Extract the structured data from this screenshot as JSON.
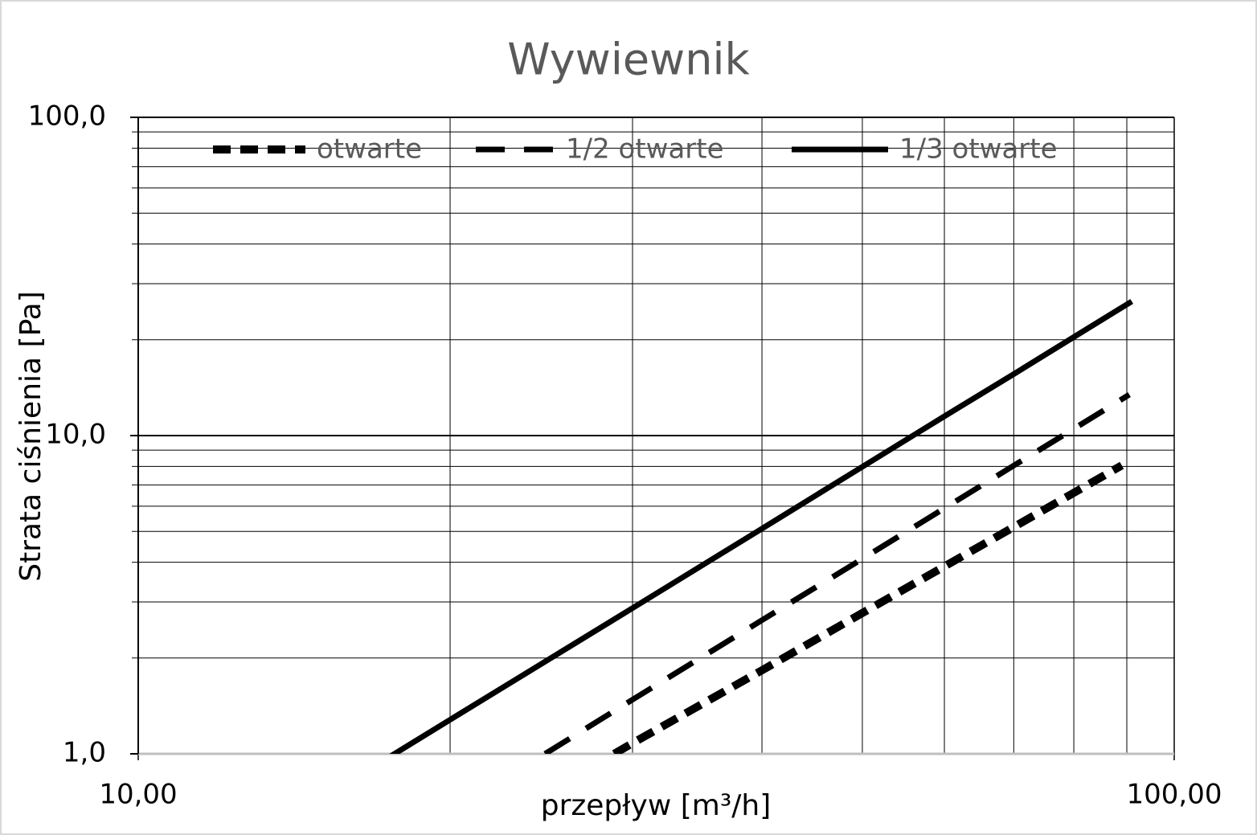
{
  "chart_data": {
    "type": "line",
    "title": "Wywiewnik",
    "x_label": "przepływ [m³/h]",
    "y_label": "Strata ciśnienia [Pa]",
    "log_x": true,
    "log_y": true,
    "grid": true,
    "legend": "top",
    "xlim": [
      10,
      100
    ],
    "xticks": [
      {
        "value": 10,
        "label": "10,00"
      },
      {
        "value": 100,
        "label": "100,00"
      }
    ],
    "ylim": [
      1,
      100
    ],
    "yticks": [
      {
        "value": 1,
        "label": "1,0"
      },
      {
        "value": 10,
        "label": "10,0"
      },
      {
        "value": 100,
        "label": "100,0"
      }
    ],
    "series": [
      {
        "name": "otwarte",
        "color": "#000000",
        "dash": "short",
        "x": [
          28.8,
          30,
          40,
          50,
          60,
          70,
          80,
          89
        ],
        "values": [
          1.0,
          1.08,
          1.83,
          2.77,
          3.88,
          5.16,
          6.61,
          8.06
        ]
      },
      {
        "name": "1/2 otwarte",
        "color": "#000000",
        "dash": "long",
        "x": [
          24.7,
          30,
          40,
          50,
          60,
          70,
          80,
          90.5
        ],
        "values": [
          1.0,
          1.48,
          2.63,
          4.1,
          5.91,
          8.05,
          10.5,
          13.45
        ]
      },
      {
        "name": "1/3 otwarte",
        "color": "#000000",
        "dash": "solid",
        "x": [
          17.5,
          20,
          30,
          40,
          50,
          60,
          70,
          80,
          91
        ],
        "values": [
          0.98,
          1.28,
          2.87,
          5.1,
          7.98,
          11.5,
          15.6,
          20.4,
          26.4
        ]
      }
    ]
  }
}
